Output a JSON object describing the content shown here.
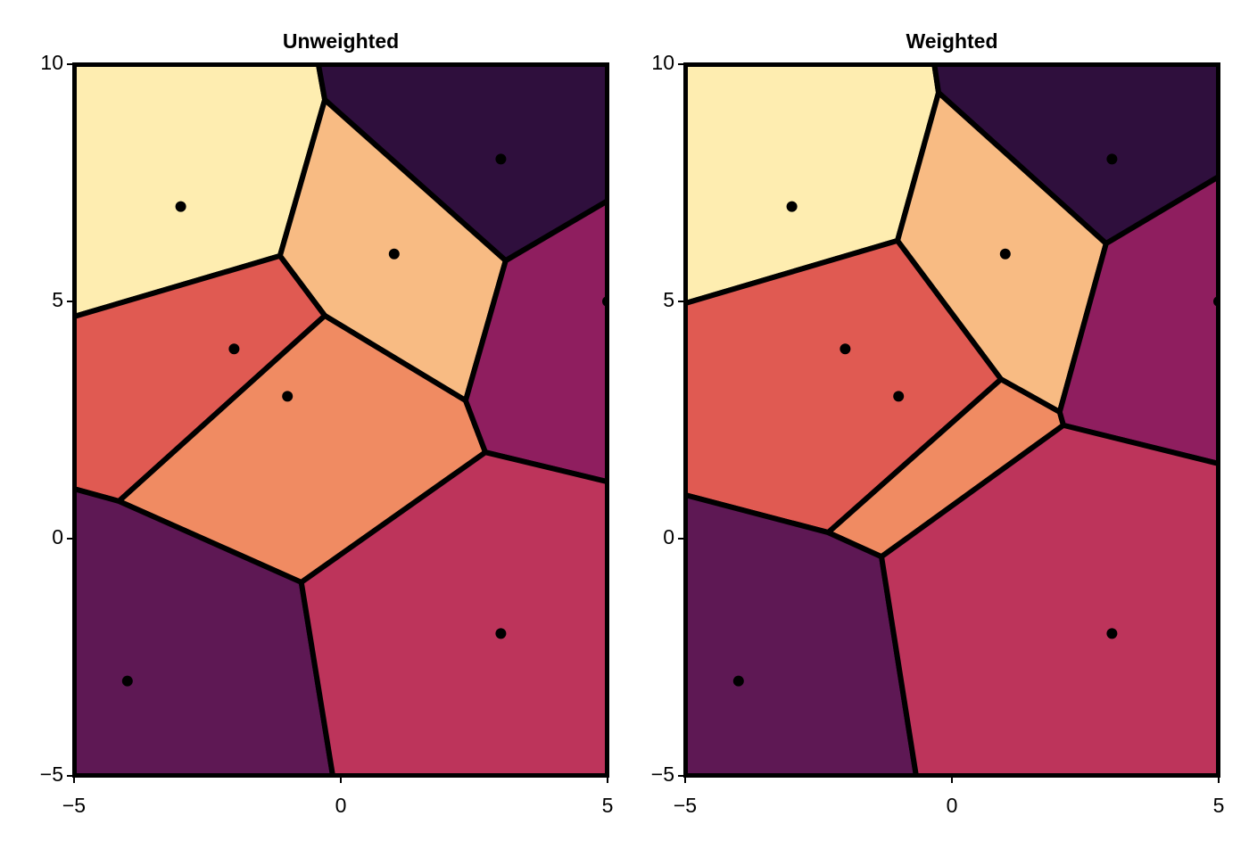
{
  "chart_data": [
    {
      "type": "voronoi",
      "title": "Unweighted",
      "xlim": [
        -5,
        5
      ],
      "ylim": [
        -5,
        10
      ],
      "xticks": [
        {
          "value": -5,
          "label": "−5"
        },
        0,
        5
      ],
      "yticks": [
        {
          "value": -5,
          "label": "−5"
        },
        0,
        5,
        10
      ],
      "x": [
        -3,
        3,
        1,
        -2,
        -1,
        5,
        -4,
        3
      ],
      "y": [
        7,
        8,
        6,
        4,
        3,
        5,
        -3,
        -2
      ],
      "cells": [
        {
          "color": "#feedb0",
          "x": [
            -5,
            -0.42,
            -0.3,
            -1.14,
            -5
          ],
          "y": [
            10,
            10,
            9.25,
            5.96,
            4.68
          ]
        },
        {
          "color": "#2f0f3d",
          "x": [
            -0.42,
            5,
            5,
            3.09,
            -0.3
          ],
          "y": [
            10,
            10,
            7.12,
            5.86,
            9.25
          ]
        },
        {
          "color": "#f8bb83",
          "x": [
            -0.3,
            3.09,
            2.34,
            -0.3,
            -1.14
          ],
          "y": [
            9.25,
            5.86,
            2.91,
            4.7,
            5.96
          ]
        },
        {
          "color": "#e05a52",
          "x": [
            -5,
            -1.14,
            -0.3,
            -4.16,
            -5
          ],
          "y": [
            4.68,
            5.96,
            4.7,
            0.79,
            1.05
          ]
        },
        {
          "color": "#f08b62",
          "x": [
            -0.3,
            2.34,
            2.71,
            -0.74,
            -4.16
          ],
          "y": [
            4.7,
            2.91,
            1.82,
            -0.92,
            0.79
          ]
        },
        {
          "color": "#8f1e5f",
          "x": [
            3.09,
            5,
            5,
            2.71,
            2.34
          ],
          "y": [
            5.86,
            7.12,
            1.2,
            1.82,
            2.91
          ]
        },
        {
          "color": "#5e1854",
          "x": [
            -5,
            -4.16,
            -0.74,
            -0.15,
            -5
          ],
          "y": [
            1.05,
            0.79,
            -0.92,
            -5,
            -5
          ]
        },
        {
          "color": "#bd345b",
          "x": [
            -0.74,
            2.71,
            5,
            5,
            -0.15
          ],
          "y": [
            -0.92,
            1.82,
            1.2,
            -5,
            -5
          ]
        }
      ]
    },
    {
      "type": "voronoi",
      "title": "Weighted",
      "xlim": [
        -5,
        5
      ],
      "ylim": [
        -5,
        10
      ],
      "xticks": [
        {
          "value": -5,
          "label": "−5"
        },
        0,
        5
      ],
      "yticks": [
        {
          "value": -5,
          "label": "−5"
        },
        0,
        5,
        10
      ],
      "x": [
        -3,
        3,
        1,
        -2,
        -1,
        5,
        -4,
        3
      ],
      "y": [
        7,
        8,
        6,
        4,
        3,
        5,
        -3,
        -2
      ],
      "cells": [
        {
          "color": "#feedb0",
          "x": [
            -5,
            -0.33,
            -0.25,
            -1.02,
            -5
          ],
          "y": [
            10,
            10,
            9.4,
            6.28,
            4.96
          ]
        },
        {
          "color": "#2f0f3d",
          "x": [
            -0.33,
            5,
            5,
            2.89,
            -0.25
          ],
          "y": [
            10,
            10,
            7.63,
            6.22,
            9.4
          ]
        },
        {
          "color": "#f8bb83",
          "x": [
            -0.25,
            2.89,
            2.02,
            0.92,
            -1.02
          ],
          "y": [
            9.4,
            6.22,
            2.67,
            3.36,
            6.28
          ]
        },
        {
          "color": "#e05a52",
          "x": [
            -5,
            -1.02,
            0.92,
            -2.32,
            -5
          ],
          "y": [
            4.96,
            6.28,
            3.36,
            0.13,
            0.92
          ]
        },
        {
          "color": "#f08b62",
          "x": [
            0.92,
            2.02,
            2.09,
            -1.32,
            -2.32
          ],
          "y": [
            3.36,
            2.67,
            2.39,
            -0.38,
            0.13
          ]
        },
        {
          "color": "#8f1e5f",
          "x": [
            2.89,
            5,
            5,
            2.09,
            2.02
          ],
          "y": [
            6.22,
            7.63,
            1.58,
            2.39,
            2.67
          ]
        },
        {
          "color": "#5e1854",
          "x": [
            -5,
            -2.32,
            -1.32,
            -0.67,
            -5
          ],
          "y": [
            0.92,
            0.13,
            -0.38,
            -5,
            -5
          ]
        },
        {
          "color": "#bd345b",
          "x": [
            -1.32,
            2.09,
            5,
            5,
            -0.67
          ],
          "y": [
            -0.38,
            2.39,
            1.58,
            -5,
            -5
          ]
        }
      ]
    }
  ]
}
